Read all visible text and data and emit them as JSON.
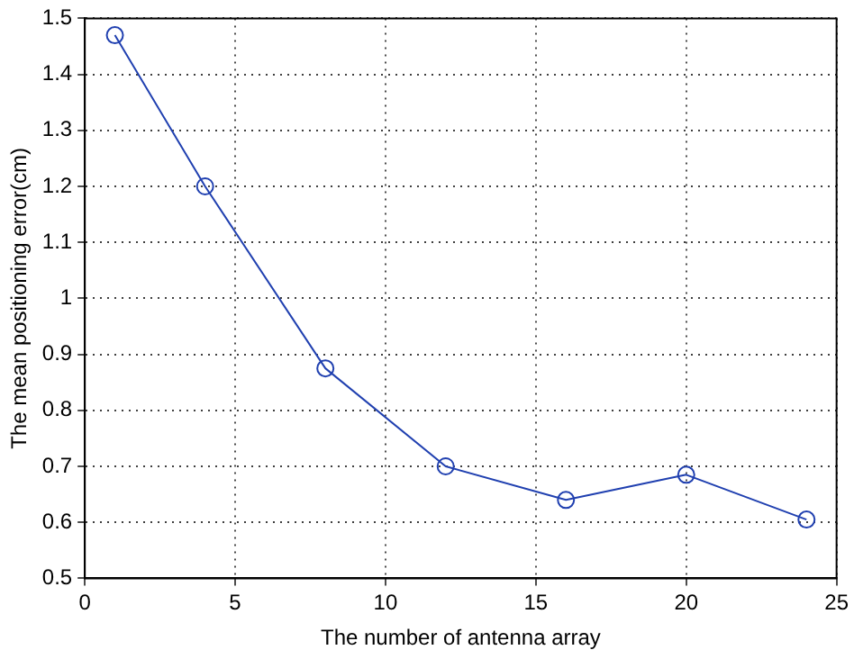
{
  "chart_data": {
    "type": "line",
    "xlabel": "The number of antenna array",
    "ylabel": "The mean positioning error(cm)",
    "x": [
      1,
      4,
      8,
      12,
      16,
      20,
      24
    ],
    "series": [
      {
        "color": "#2040b0",
        "values": [
          1.47,
          1.2,
          0.875,
          0.7,
          0.64,
          0.685,
          0.605
        ]
      }
    ],
    "xlim": [
      0,
      25
    ],
    "xticks": [
      0,
      5,
      10,
      15,
      20,
      25
    ],
    "ylim": [
      0.5,
      1.5
    ],
    "yticks": [
      0.5,
      0.6,
      0.7,
      0.8,
      0.9,
      1,
      1.1,
      1.2,
      1.3,
      1.4,
      1.5
    ],
    "grid": true,
    "legend": false,
    "marker": "circle",
    "line_style": "solid"
  }
}
